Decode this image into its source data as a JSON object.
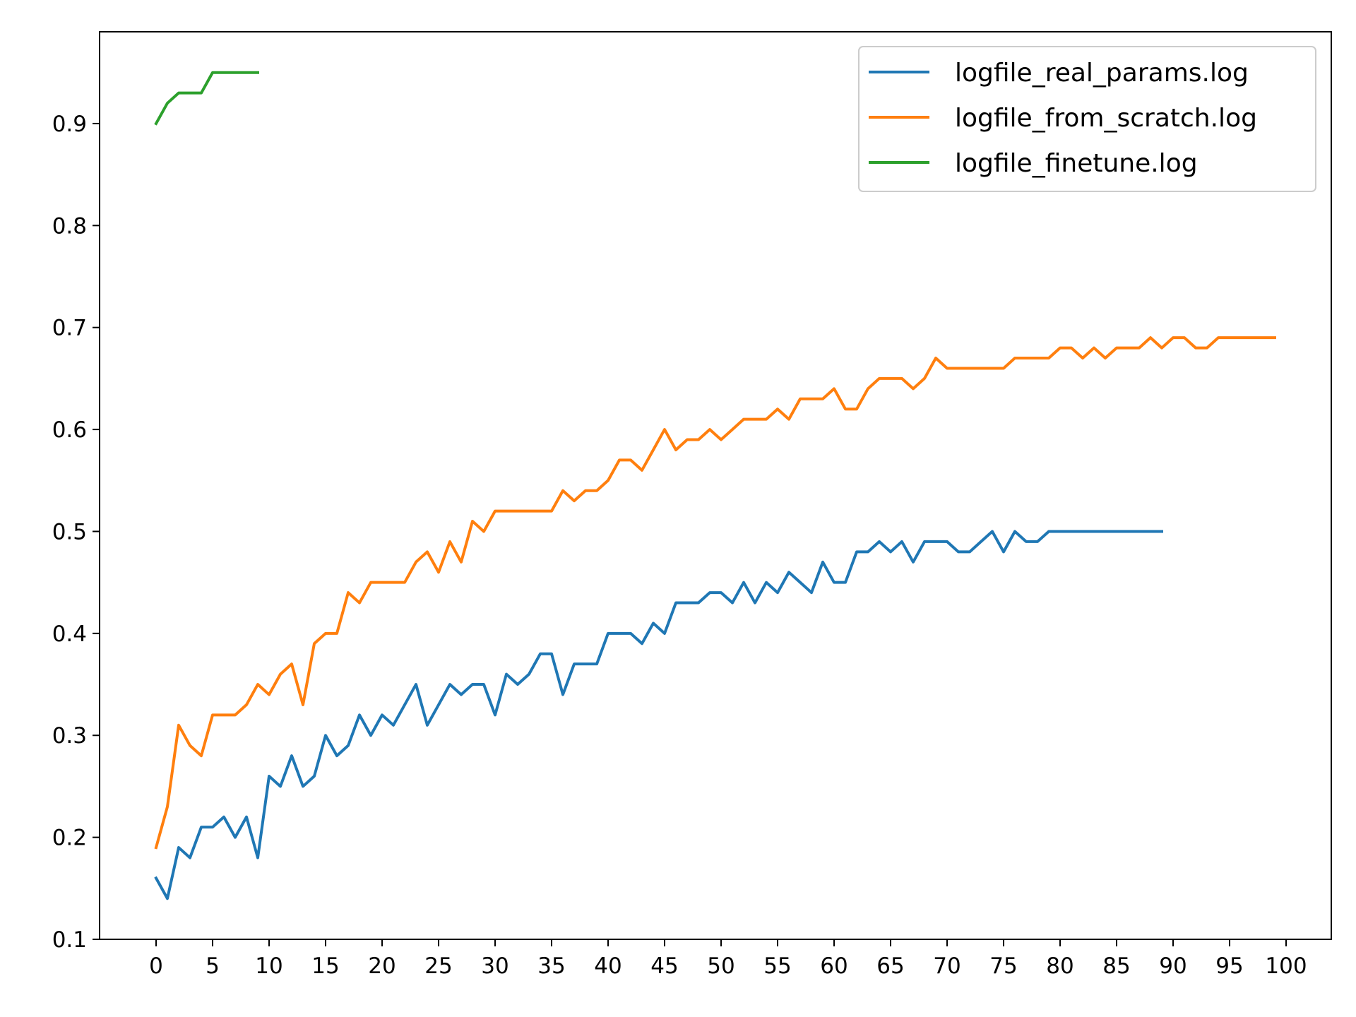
{
  "chart_data": {
    "type": "line",
    "title": "",
    "xlabel": "",
    "ylabel": "",
    "xlim": [
      -5,
      104
    ],
    "ylim": [
      0.1,
      0.99
    ],
    "xticks": [
      0,
      5,
      10,
      15,
      20,
      25,
      30,
      35,
      40,
      45,
      50,
      55,
      60,
      65,
      70,
      75,
      80,
      85,
      90,
      95,
      100
    ],
    "yticks": [
      0.1,
      0.2,
      0.3,
      0.4,
      0.5,
      0.6,
      0.7,
      0.8,
      0.9
    ],
    "xtick_labels": [
      "0",
      "5",
      "10",
      "15",
      "20",
      "25",
      "30",
      "35",
      "40",
      "45",
      "50",
      "55",
      "60",
      "65",
      "70",
      "75",
      "80",
      "85",
      "90",
      "95",
      "100"
    ],
    "ytick_labels": [
      "0.1",
      "0.2",
      "0.3",
      "0.4",
      "0.5",
      "0.6",
      "0.7",
      "0.8",
      "0.9"
    ],
    "grid": false,
    "legend_position": "top-right",
    "series": [
      {
        "name": "logfile_real_params.log",
        "color": "#1f77b4",
        "values": [
          0.16,
          0.14,
          0.19,
          0.18,
          0.21,
          0.21,
          0.22,
          0.2,
          0.22,
          0.18,
          0.26,
          0.25,
          0.28,
          0.25,
          0.26,
          0.3,
          0.28,
          0.29,
          0.32,
          0.3,
          0.32,
          0.31,
          0.33,
          0.35,
          0.31,
          0.33,
          0.35,
          0.34,
          0.35,
          0.35,
          0.32,
          0.36,
          0.35,
          0.36,
          0.38,
          0.38,
          0.34,
          0.37,
          0.37,
          0.37,
          0.4,
          0.4,
          0.4,
          0.39,
          0.41,
          0.4,
          0.43,
          0.43,
          0.43,
          0.44,
          0.44,
          0.43,
          0.45,
          0.43,
          0.45,
          0.44,
          0.46,
          0.45,
          0.44,
          0.47,
          0.45,
          0.45,
          0.48,
          0.48,
          0.49,
          0.48,
          0.49,
          0.47,
          0.49,
          0.49,
          0.49,
          0.48,
          0.48,
          0.49,
          0.5,
          0.48,
          0.5,
          0.49,
          0.49,
          0.5,
          0.5,
          0.5,
          0.5,
          0.5,
          0.5,
          0.5,
          0.5,
          0.5,
          0.5,
          0.5
        ]
      },
      {
        "name": "logfile_from_scratch.log",
        "color": "#ff7f0e",
        "values": [
          0.19,
          0.23,
          0.31,
          0.29,
          0.28,
          0.32,
          0.32,
          0.32,
          0.33,
          0.35,
          0.34,
          0.36,
          0.37,
          0.33,
          0.39,
          0.4,
          0.4,
          0.44,
          0.43,
          0.45,
          0.45,
          0.45,
          0.45,
          0.47,
          0.48,
          0.46,
          0.49,
          0.47,
          0.51,
          0.5,
          0.52,
          0.52,
          0.52,
          0.52,
          0.52,
          0.52,
          0.54,
          0.53,
          0.54,
          0.54,
          0.55,
          0.57,
          0.57,
          0.56,
          0.58,
          0.6,
          0.58,
          0.59,
          0.59,
          0.6,
          0.59,
          0.6,
          0.61,
          0.61,
          0.61,
          0.62,
          0.61,
          0.63,
          0.63,
          0.63,
          0.64,
          0.62,
          0.62,
          0.64,
          0.65,
          0.65,
          0.65,
          0.64,
          0.65,
          0.67,
          0.66,
          0.66,
          0.66,
          0.66,
          0.66,
          0.66,
          0.67,
          0.67,
          0.67,
          0.67,
          0.68,
          0.68,
          0.67,
          0.68,
          0.67,
          0.68,
          0.68,
          0.68,
          0.69,
          0.68,
          0.69,
          0.69,
          0.68,
          0.68,
          0.69,
          0.69,
          0.69,
          0.69,
          0.69,
          0.69
        ]
      },
      {
        "name": "logfile_finetune.log",
        "color": "#2ca02c",
        "values": [
          0.9,
          0.92,
          0.93,
          0.93,
          0.93,
          0.95,
          0.95,
          0.95,
          0.95,
          0.95
        ]
      }
    ]
  }
}
